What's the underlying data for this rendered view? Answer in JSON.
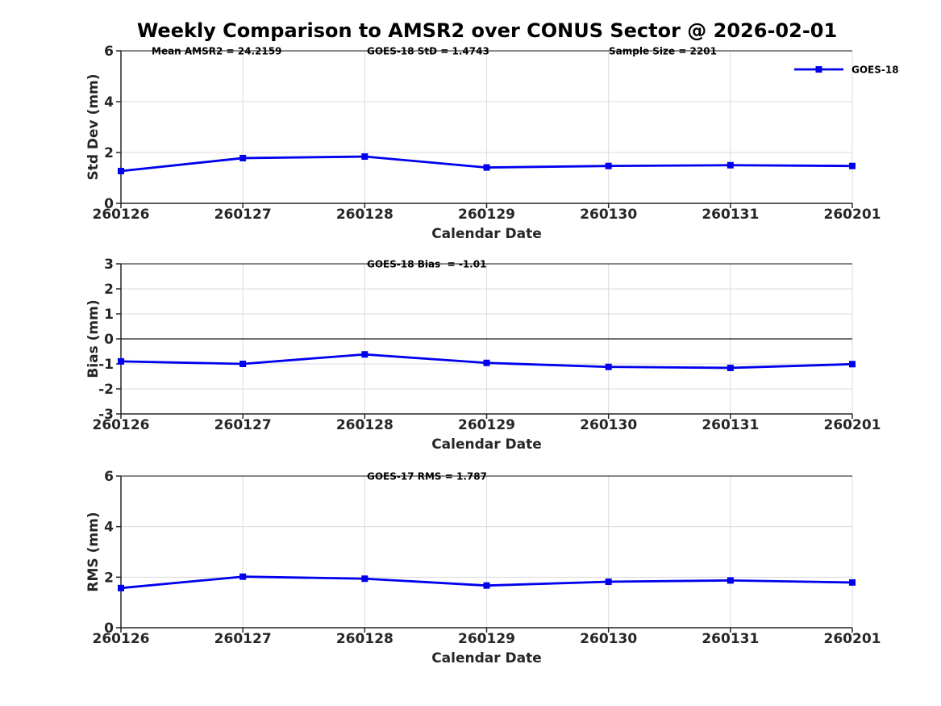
{
  "title": "Weekly Comparison to AMSR2 over CONUS Sector @ 2026-02-01",
  "colors": {
    "line": "#0000EE",
    "grid": "#DBDBDB",
    "axis": "#262626",
    "top_border": "#404040",
    "zero_line": "#404040",
    "text": "#262626",
    "annotation_text": "#000000",
    "background": "#FFFFFF"
  },
  "chart_data": [
    {
      "type": "line",
      "categories": [
        "260126",
        "260127",
        "260128",
        "260129",
        "260130",
        "260131",
        "260201"
      ],
      "series": [
        {
          "name": "GOES-18",
          "values": [
            1.27,
            1.78,
            1.84,
            1.41,
            1.47,
            1.5,
            1.47
          ]
        }
      ],
      "xlabel": "Calendar Date",
      "ylabel": "Std Dev (mm)",
      "ylim": [
        0,
        6
      ],
      "yticks": [
        0,
        2,
        4,
        6
      ],
      "grid": true,
      "annotations": [
        "Mean AMSR2 = 24.2159",
        "GOES-18 StD = 1.4743",
        "Sample Size = 2201"
      ],
      "legend": {
        "entries": [
          "GOES-18"
        ],
        "position": "top-right",
        "box": false
      }
    },
    {
      "type": "line",
      "categories": [
        "260126",
        "260127",
        "260128",
        "260129",
        "260130",
        "260131",
        "260201"
      ],
      "series": [
        {
          "name": "GOES-18",
          "values": [
            -0.9,
            -1.0,
            -0.62,
            -0.96,
            -1.12,
            -1.16,
            -1.01
          ]
        }
      ],
      "xlabel": "Calendar Date",
      "ylabel": "Bias (mm)",
      "ylim": [
        -3,
        3
      ],
      "yticks": [
        3,
        2,
        1,
        0,
        -1,
        -2,
        -3
      ],
      "grid": true,
      "zero_line": true,
      "annotations": [
        "GOES-18 Bias  = -1.01"
      ]
    },
    {
      "type": "line",
      "categories": [
        "260126",
        "260127",
        "260128",
        "260129",
        "260130",
        "260131",
        "260201"
      ],
      "series": [
        {
          "name": "GOES-18",
          "values": [
            1.57,
            2.02,
            1.94,
            1.67,
            1.82,
            1.87,
            1.79
          ]
        }
      ],
      "xlabel": "Calendar Date",
      "ylabel": "RMS (mm)",
      "ylim": [
        0,
        6
      ],
      "yticks": [
        0,
        2,
        4,
        6
      ],
      "grid": true,
      "annotations": [
        "GOES-17 RMS = 1.787"
      ]
    }
  ]
}
